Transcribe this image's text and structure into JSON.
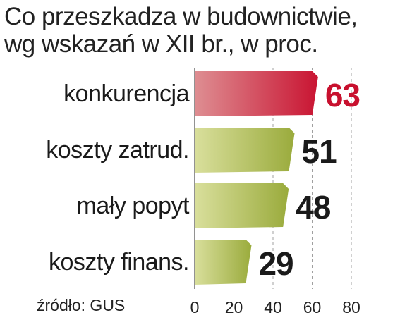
{
  "title_line1": "Co przeszkadza w budownictwie,",
  "title_line2": "wg wskazań w XII br., w proc.",
  "source": "źródło: GUS",
  "chart_data": {
    "type": "bar",
    "orientation": "horizontal",
    "categories": [
      "konkurencja",
      "koszty zatrud.",
      "mały popyt",
      "koszty finans."
    ],
    "values": [
      63,
      51,
      48,
      29
    ],
    "value_labels": [
      "63",
      "51",
      "48",
      "29"
    ],
    "xlim": [
      0,
      80
    ],
    "xticks": [
      0,
      20,
      40,
      60,
      80
    ],
    "xtick_labels": [
      "0",
      "20",
      "40",
      "60",
      "80"
    ],
    "grid": true,
    "colors": {
      "highlight_start": "#de8e92",
      "highlight_end": "#c91432",
      "highlight_label": "#c8102e",
      "bar_start": "#d9df9c",
      "bar_end": "#9aab3c",
      "label": "#1a1a1a",
      "grid": "#a0a0a0",
      "axis": "#6e6e6e"
    }
  }
}
